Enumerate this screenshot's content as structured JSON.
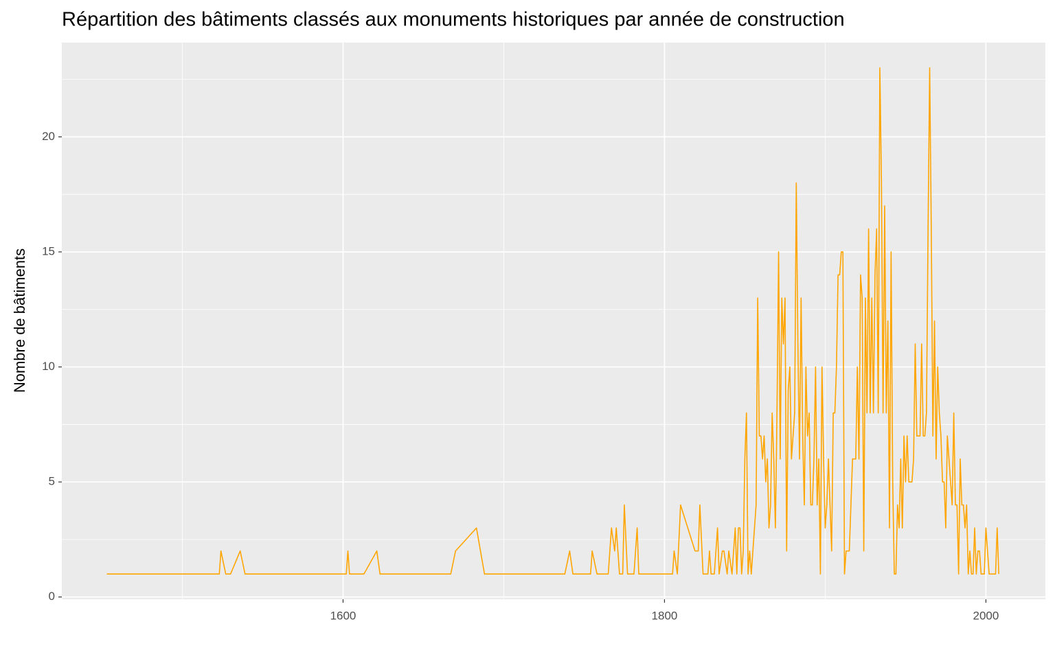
{
  "chart_data": {
    "type": "line",
    "title": "Répartition des bâtiments classés aux monuments historiques par année de construction",
    "ylabel": "Nombre de bâtiments",
    "color": "#FFA500",
    "grid": true,
    "xlim": [
      1425,
      2037
    ],
    "ylim": [
      -0.1,
      24.1
    ],
    "xticks": [
      1600,
      1800,
      2000
    ],
    "yticks": [
      0,
      5,
      10,
      15,
      20
    ],
    "x": [
      1453,
      1523,
      1524,
      1527,
      1530,
      1536,
      1539,
      1602,
      1603,
      1604,
      1613,
      1621,
      1623,
      1667,
      1670,
      1683,
      1688,
      1738,
      1741,
      1743,
      1754,
      1755,
      1758,
      1765,
      1767,
      1769,
      1770,
      1772,
      1774,
      1775,
      1777,
      1781,
      1783,
      1784,
      1805,
      1806,
      1808,
      1810,
      1819,
      1821,
      1822,
      1824,
      1827,
      1828,
      1829,
      1831,
      1833,
      1834,
      1836,
      1837,
      1839,
      1840,
      1842,
      1844,
      1845,
      1846,
      1847,
      1848,
      1849,
      1850,
      1851,
      1852,
      1853,
      1854,
      1855,
      1856,
      1857,
      1858,
      1859,
      1860,
      1861,
      1862,
      1863,
      1864,
      1865,
      1866,
      1867,
      1868,
      1869,
      1870,
      1871,
      1872,
      1873,
      1874,
      1875,
      1876,
      1877,
      1878,
      1879,
      1880,
      1881,
      1882,
      1883,
      1884,
      1885,
      1886,
      1887,
      1888,
      1889,
      1890,
      1891,
      1892,
      1893,
      1894,
      1895,
      1896,
      1897,
      1898,
      1899,
      1900,
      1901,
      1902,
      1903,
      1904,
      1905,
      1906,
      1907,
      1908,
      1909,
      1910,
      1911,
      1912,
      1913,
      1914,
      1915,
      1916,
      1917,
      1918,
      1919,
      1920,
      1921,
      1922,
      1923,
      1924,
      1925,
      1926,
      1927,
      1928,
      1929,
      1930,
      1931,
      1932,
      1933,
      1934,
      1935,
      1936,
      1937,
      1938,
      1939,
      1940,
      1941,
      1942,
      1943,
      1944,
      1945,
      1946,
      1947,
      1948,
      1949,
      1950,
      1951,
      1952,
      1953,
      1954,
      1955,
      1956,
      1957,
      1958,
      1959,
      1960,
      1961,
      1962,
      1963,
      1964,
      1965,
      1966,
      1967,
      1968,
      1969,
      1970,
      1971,
      1972,
      1973,
      1974,
      1975,
      1976,
      1977,
      1978,
      1979,
      1980,
      1981,
      1982,
      1983,
      1984,
      1985,
      1986,
      1987,
      1988,
      1989,
      1990,
      1991,
      1992,
      1993,
      1994,
      1995,
      1996,
      1997,
      1998,
      1999,
      2000,
      2001,
      2002,
      2003,
      2004,
      2005,
      2006,
      2007,
      2008
    ],
    "values": [
      1,
      1,
      2,
      1,
      1,
      2,
      1,
      1,
      2,
      1,
      1,
      2,
      1,
      1,
      2,
      3,
      1,
      1,
      2,
      1,
      1,
      2,
      1,
      1,
      3,
      2,
      3,
      1,
      1,
      4,
      1,
      1,
      3,
      1,
      1,
      2,
      1,
      4,
      2,
      2,
      4,
      1,
      1,
      2,
      1,
      1,
      3,
      1,
      2,
      2,
      1,
      2,
      1,
      3,
      1,
      3,
      3,
      1,
      2,
      6,
      8,
      1,
      2,
      1,
      2,
      3,
      4,
      13,
      7,
      7,
      6,
      7,
      5,
      6,
      3,
      4,
      8,
      6,
      3,
      8,
      15,
      6,
      13,
      11,
      13,
      2,
      9,
      10,
      6,
      7,
      8,
      18,
      11,
      6,
      13,
      7,
      4,
      10,
      7,
      8,
      4,
      4,
      6,
      10,
      4,
      6,
      1,
      10,
      6,
      3,
      4,
      6,
      4,
      2,
      8,
      8,
      10,
      14,
      14,
      15,
      15,
      1,
      2,
      2,
      2,
      4,
      6,
      6,
      6,
      10,
      6,
      14,
      13,
      2,
      13,
      8,
      16,
      8,
      13,
      8,
      14,
      16,
      8,
      23,
      18,
      8,
      17,
      8,
      12,
      3,
      15,
      5,
      1,
      1,
      4,
      3,
      6,
      3,
      7,
      5,
      7,
      5,
      5,
      5,
      6,
      11,
      7,
      7,
      7,
      11,
      7,
      7,
      8,
      16,
      23,
      16,
      7,
      12,
      6,
      10,
      8,
      7,
      5,
      5,
      3,
      7,
      6,
      5,
      4,
      8,
      4,
      4,
      1,
      6,
      4,
      4,
      3,
      4,
      1,
      2,
      1,
      1,
      3,
      1,
      2,
      2,
      1,
      1,
      1,
      3,
      2,
      1,
      1,
      1,
      1,
      1,
      3,
      1
    ]
  }
}
